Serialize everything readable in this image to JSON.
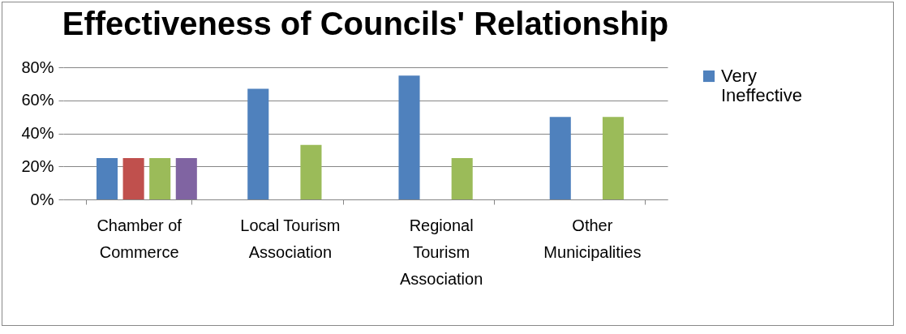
{
  "chart_data": {
    "type": "bar",
    "title": "Effectiveness of Councils' Relationship",
    "categories": [
      "Chamber of Commerce",
      "Local Tourism Association",
      "Regional Tourism Association",
      "Other Municipalities"
    ],
    "series": [
      {
        "name": "Very Ineffective",
        "color": "#4f81bd",
        "values": [
          25,
          67,
          75,
          50
        ]
      },
      {
        "color": "#c0504d",
        "values": [
          25,
          0,
          0,
          0
        ]
      },
      {
        "color": "#9bbb59",
        "values": [
          25,
          33,
          25,
          50
        ]
      },
      {
        "color": "#8064a2",
        "values": [
          25,
          0,
          0,
          0
        ]
      }
    ],
    "ylim": [
      0,
      80
    ],
    "yticks": [
      {
        "value": 0,
        "label": "0%"
      },
      {
        "value": 20,
        "label": "20%"
      },
      {
        "value": 40,
        "label": "40%"
      },
      {
        "value": 60,
        "label": "60%"
      },
      {
        "value": 80,
        "label": "80%"
      }
    ],
    "grid": "y",
    "legend": "right"
  }
}
